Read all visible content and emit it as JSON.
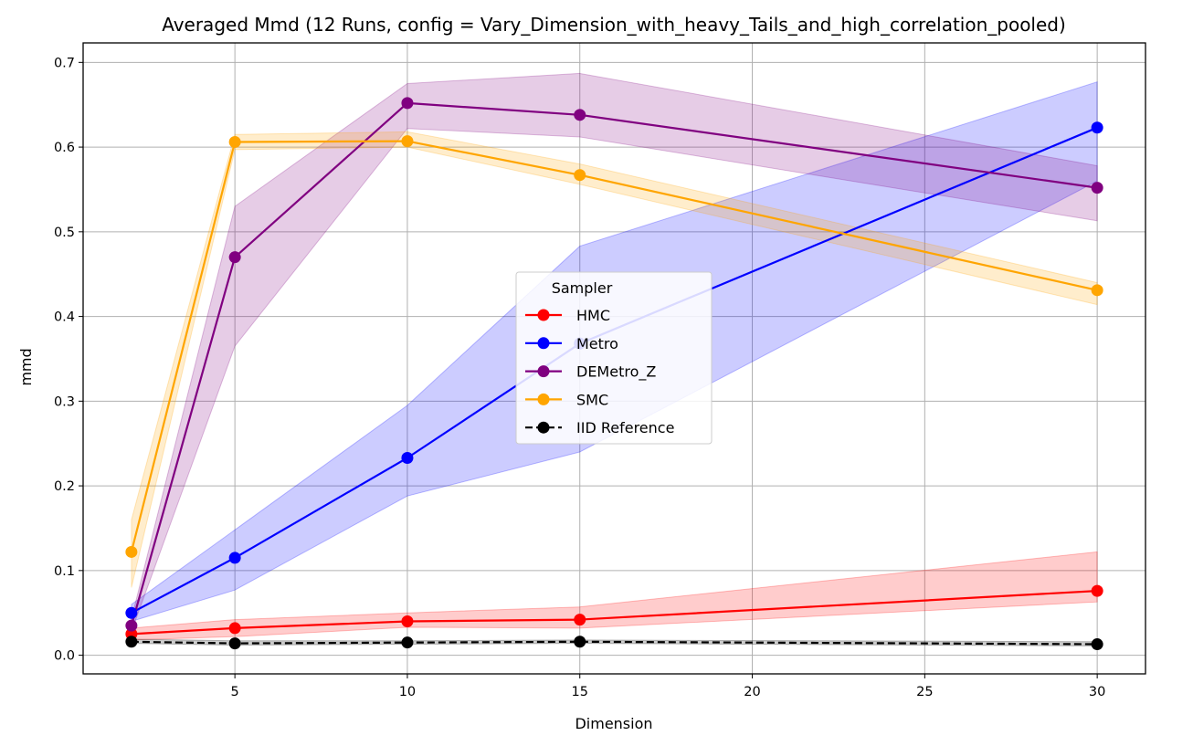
{
  "chart_data": {
    "type": "line",
    "title": "Averaged Mmd (12 Runs, config = Vary_Dimension_with_heavy_Tails_and_high_correlation_pooled)",
    "xlabel": "Dimension",
    "ylabel": "mmd",
    "x": [
      2,
      5,
      10,
      15,
      30
    ],
    "xlim": [
      0.6,
      31.4
    ],
    "ylim": [
      -0.022,
      0.723
    ],
    "xticks": [
      5,
      10,
      15,
      20,
      25,
      30
    ],
    "yticks": [
      0.0,
      0.1,
      0.2,
      0.3,
      0.4,
      0.5,
      0.6,
      0.7
    ],
    "grid": true,
    "legend": {
      "title": "Sampler",
      "placement": "center"
    },
    "series": [
      {
        "name": "HMC",
        "color": "#ff0000",
        "dashed": false,
        "values": [
          0.025,
          0.032,
          0.04,
          0.042,
          0.076
        ],
        "lower": [
          0.018,
          0.022,
          0.033,
          0.032,
          0.063
        ],
        "upper": [
          0.032,
          0.042,
          0.05,
          0.057,
          0.122
        ]
      },
      {
        "name": "Metro",
        "color": "#0000ff",
        "dashed": false,
        "values": [
          0.05,
          0.115,
          0.233,
          0.368,
          0.623
        ],
        "lower": [
          0.04,
          0.077,
          0.188,
          0.24,
          0.56
        ],
        "upper": [
          0.06,
          0.148,
          0.295,
          0.483,
          0.677
        ]
      },
      {
        "name": "DEMetro_Z",
        "color": "#800080",
        "dashed": false,
        "values": [
          0.035,
          0.47,
          0.652,
          0.638,
          0.552
        ],
        "lower": [
          0.028,
          0.365,
          0.622,
          0.612,
          0.513
        ],
        "upper": [
          0.043,
          0.53,
          0.675,
          0.687,
          0.578
        ]
      },
      {
        "name": "SMC",
        "color": "#ffa500",
        "dashed": false,
        "values": [
          0.122,
          0.606,
          0.607,
          0.567,
          0.431
        ],
        "lower": [
          0.08,
          0.597,
          0.6,
          0.556,
          0.414
        ],
        "upper": [
          0.16,
          0.615,
          0.618,
          0.58,
          0.44
        ]
      },
      {
        "name": "IID Reference",
        "color": "#000000",
        "dashed": true,
        "values": [
          0.016,
          0.014,
          0.015,
          0.016,
          0.013
        ],
        "lower": [
          0.014,
          0.012,
          0.013,
          0.014,
          0.011
        ],
        "upper": [
          0.019,
          0.017,
          0.017,
          0.018,
          0.016
        ]
      }
    ]
  }
}
